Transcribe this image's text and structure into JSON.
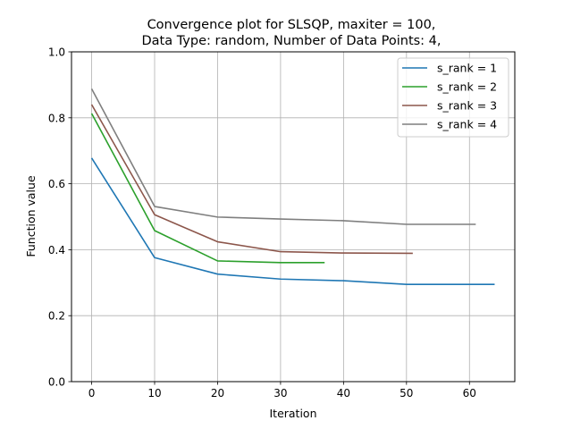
{
  "chart_data": {
    "type": "line",
    "title_lines": [
      "Convergence plot for SLSQP, maxiter = 100,",
      "Data Type: random, Number of Data Points: 4,"
    ],
    "xlabel": "Iteration",
    "ylabel": "Function value",
    "xlim": [
      -3.2,
      67.2
    ],
    "ylim": [
      0,
      1
    ],
    "xticks": [
      0,
      10,
      20,
      30,
      40,
      50,
      60
    ],
    "yticks": [
      0.0,
      0.2,
      0.4,
      0.6,
      0.8,
      1.0
    ],
    "ytick_labels": [
      "0.0",
      "0.2",
      "0.4",
      "0.6",
      "0.8",
      "1.0"
    ],
    "grid": true,
    "legend_position": "top-right",
    "series": [
      {
        "name": "s_rank = 1",
        "color": "#1f77b4",
        "x": [
          0,
          10,
          20,
          30,
          40,
          50,
          60,
          64
        ],
        "y": [
          0.678,
          0.376,
          0.326,
          0.311,
          0.306,
          0.295,
          0.295,
          0.295
        ]
      },
      {
        "name": "s_rank = 2",
        "color": "#2ca02c",
        "x": [
          0,
          10,
          20,
          30,
          37
        ],
        "y": [
          0.813,
          0.458,
          0.366,
          0.361,
          0.361
        ]
      },
      {
        "name": "s_rank = 3",
        "color": "#8c564b",
        "x": [
          0,
          10,
          20,
          30,
          40,
          51
        ],
        "y": [
          0.84,
          0.506,
          0.424,
          0.394,
          0.39,
          0.389
        ]
      },
      {
        "name": "s_rank = 4",
        "color": "#7f7f7f",
        "x": [
          0,
          10,
          20,
          30,
          40,
          50,
          61
        ],
        "y": [
          0.888,
          0.531,
          0.499,
          0.493,
          0.488,
          0.477,
          0.477
        ]
      }
    ]
  }
}
